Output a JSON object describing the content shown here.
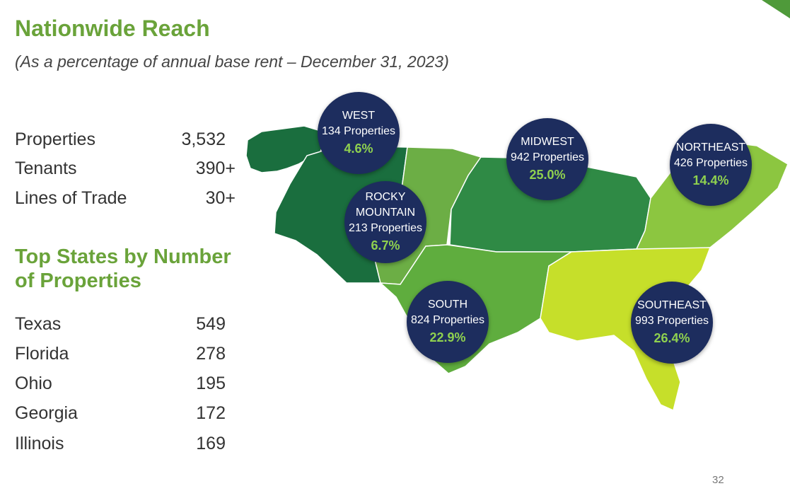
{
  "header": {
    "title": "Nationwide Reach",
    "subtitle": "(As a percentage of annual base rent – December 31, 2023)"
  },
  "stats": [
    {
      "label": "Properties",
      "value": "3,532"
    },
    {
      "label": "Tenants",
      "value": "390+"
    },
    {
      "label": "Lines of Trade",
      "value": "30+"
    }
  ],
  "top_states": {
    "title": "Top States by Number of Properties",
    "items": [
      {
        "state": "Texas",
        "count": "549"
      },
      {
        "state": "Florida",
        "count": "278"
      },
      {
        "state": "Ohio",
        "count": "195"
      },
      {
        "state": "Georgia",
        "count": "172"
      },
      {
        "state": "Illinois",
        "count": "169"
      }
    ]
  },
  "regions": [
    {
      "name": "WEST",
      "name_line2": "",
      "properties": "134 Properties",
      "percent": "4.6%",
      "color": "#1a6e3e"
    },
    {
      "name": "ROCKY",
      "name_line2": "MOUNTAIN",
      "properties": "213 Properties",
      "percent": "6.7%",
      "color": "#6cae45"
    },
    {
      "name": "MIDWEST",
      "name_line2": "",
      "properties": "942 Properties",
      "percent": "25.0%",
      "color": "#2f8a45"
    },
    {
      "name": "NORTHEAST",
      "name_line2": "",
      "properties": "426 Properties",
      "percent": "14.4%",
      "color": "#8cc640"
    },
    {
      "name": "SOUTH",
      "name_line2": "",
      "properties": "824 Properties",
      "percent": "22.9%",
      "color": "#5fad3e"
    },
    {
      "name": "SOUTHEAST",
      "name_line2": "",
      "properties": "993 Properties",
      "percent": "26.4%",
      "color": "#c6df2a"
    }
  ],
  "bubble_color": "#1d2d5e",
  "accent_color": "#6aa33a",
  "page_number": "32"
}
